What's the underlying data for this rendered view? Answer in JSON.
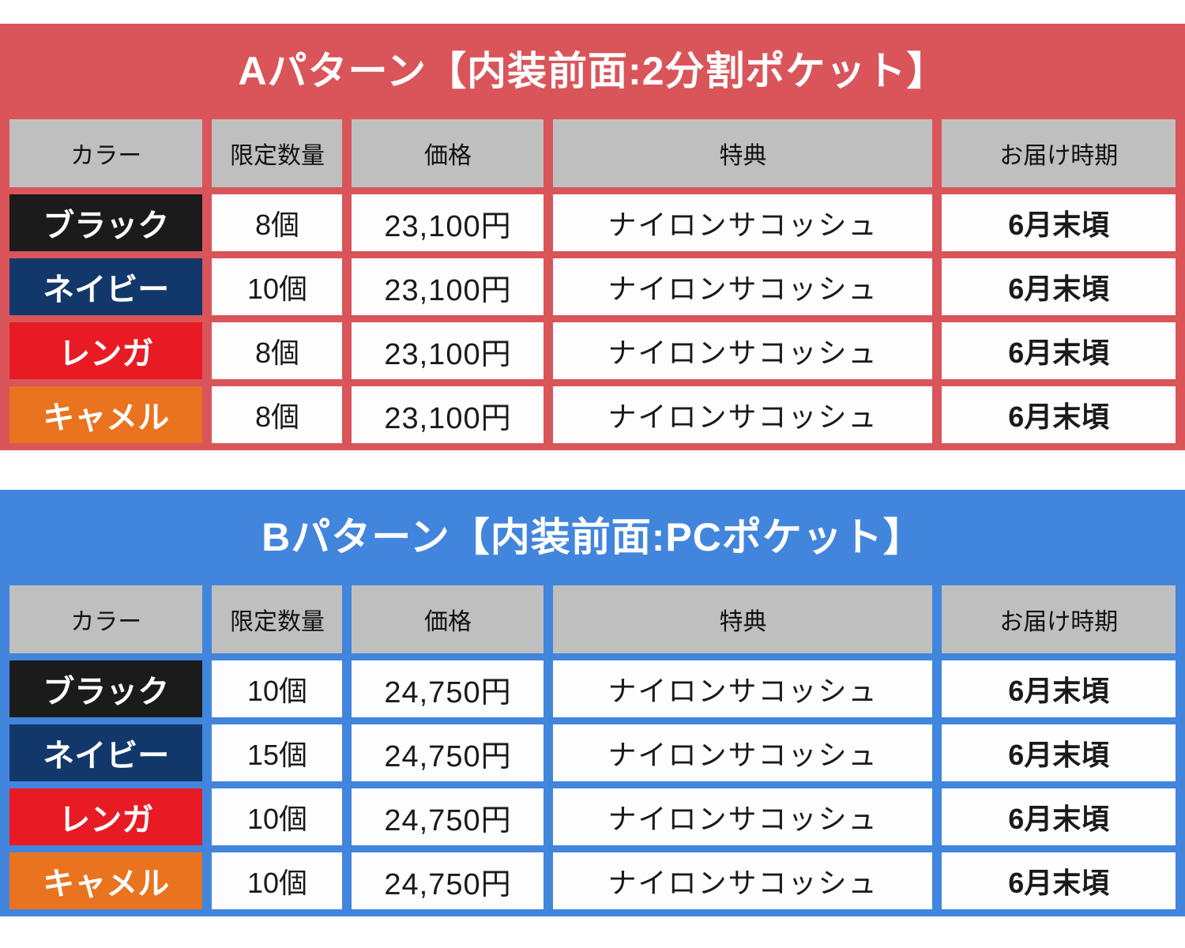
{
  "chart_data": [
    {
      "type": "table",
      "title": "Aパターン【内装前面:2分割ポケット】",
      "accent_color": "#D9555A",
      "header_bg": "#BFBFBF",
      "columns": [
        "カラー",
        "限定数量",
        "価格",
        "特典",
        "お届け時期"
      ],
      "rows": [
        {
          "color": "ブラック",
          "color_bg": "#1B1B1B",
          "qty": "8個",
          "price": "23,100円",
          "bonus": "ナイロンサコッシュ",
          "delivery": "6月末頃"
        },
        {
          "color": "ネイビー",
          "color_bg": "#12386B",
          "qty": "10個",
          "price": "23,100円",
          "bonus": "ナイロンサコッシュ",
          "delivery": "6月末頃"
        },
        {
          "color": "レンガ",
          "color_bg": "#E81B24",
          "qty": "8個",
          "price": "23,100円",
          "bonus": "ナイロンサコッシュ",
          "delivery": "6月末頃"
        },
        {
          "color": "キャメル",
          "color_bg": "#E9731E",
          "qty": "8個",
          "price": "23,100円",
          "bonus": "ナイロンサコッシュ",
          "delivery": "6月末頃"
        }
      ]
    },
    {
      "type": "table",
      "title": "Bパターン【内装前面:PCポケット】",
      "accent_color": "#4285DC",
      "header_bg": "#BFBFBF",
      "columns": [
        "カラー",
        "限定数量",
        "価格",
        "特典",
        "お届け時期"
      ],
      "rows": [
        {
          "color": "ブラック",
          "color_bg": "#1B1B1B",
          "qty": "10個",
          "price": "24,750円",
          "bonus": "ナイロンサコッシュ",
          "delivery": "6月末頃"
        },
        {
          "color": "ネイビー",
          "color_bg": "#12386B",
          "qty": "15個",
          "price": "24,750円",
          "bonus": "ナイロンサコッシュ",
          "delivery": "6月末頃"
        },
        {
          "color": "レンガ",
          "color_bg": "#E81B24",
          "qty": "10個",
          "price": "24,750円",
          "bonus": "ナイロンサコッシュ",
          "delivery": "6月末頃"
        },
        {
          "color": "キャメル",
          "color_bg": "#E9731E",
          "qty": "10個",
          "price": "24,750円",
          "bonus": "ナイロンサコッシュ",
          "delivery": "6月末頃"
        }
      ]
    }
  ]
}
